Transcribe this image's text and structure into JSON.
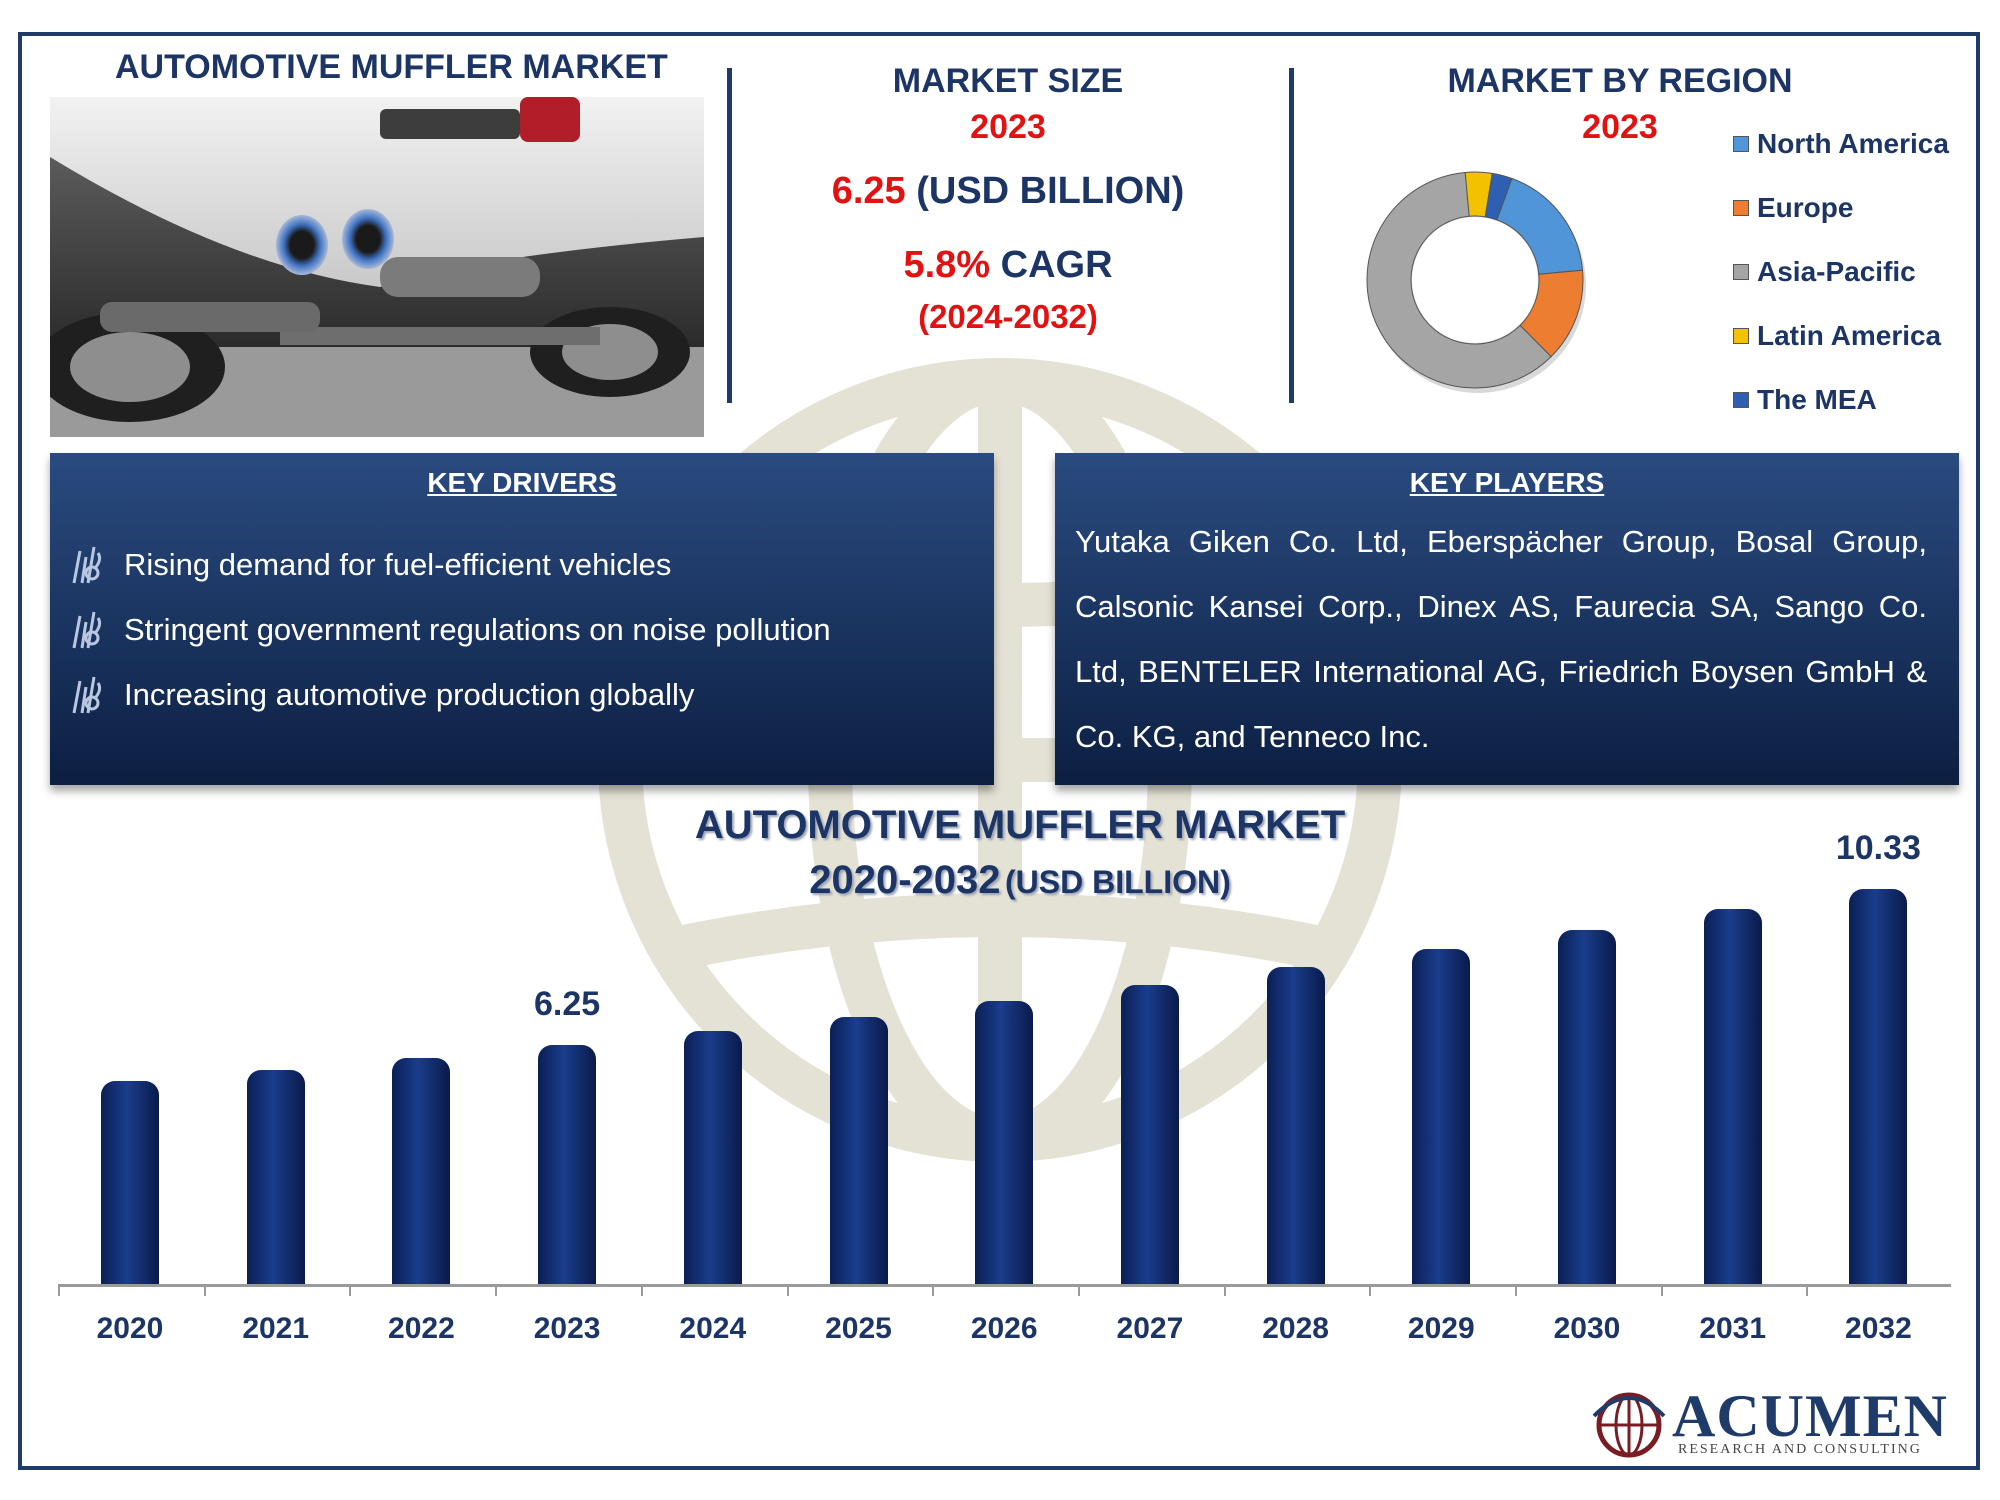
{
  "header": {
    "title": "AUTOMOTIVE MUFFLER MARKET"
  },
  "market_size": {
    "heading": "MARKET SIZE",
    "year": "2023",
    "value": "6.25",
    "unit": "(USD BILLION)",
    "cagr_value": "5.8%",
    "cagr_label": "CAGR",
    "cagr_period": "(2024-2032)"
  },
  "region": {
    "heading": "MARKET BY REGION",
    "year": "2023",
    "legend": [
      {
        "label": "North America",
        "color": "#4f95d8"
      },
      {
        "label": "Europe",
        "color": "#ed7d31"
      },
      {
        "label": "Asia-Pacific",
        "color": "#a5a5a5"
      },
      {
        "label": "Latin America",
        "color": "#f2c200"
      },
      {
        "label": "The MEA",
        "color": "#2e5fb3"
      }
    ]
  },
  "key_drivers": {
    "heading": "KEY DRIVERS",
    "items": [
      "Rising demand for fuel-efficient vehicles",
      "Stringent government regulations on noise pollution",
      "Increasing automotive production globally"
    ]
  },
  "key_players": {
    "heading": "KEY PLAYERS",
    "text": "Yutaka Giken Co. Ltd, Eberspächer Group, Bosal Group, Calsonic Kansei Corp., Dinex AS, Faurecia SA, Sango Co. Ltd, BENTELER International AG, Friedrich Boysen GmbH & Co. KG, and Tenneco Inc."
  },
  "bar_chart_title": {
    "line1": "AUTOMOTIVE MUFFLER MARKET",
    "line2_years": "2020-2032",
    "line2_unit": "(USD BILLION)"
  },
  "logo": {
    "name": "ACUMEN",
    "tagline": "RESEARCH AND CONSULTING"
  },
  "chart_data": [
    {
      "type": "bar",
      "title": "AUTOMOTIVE MUFFLER MARKET 2020-2032 (USD BILLION)",
      "categories": [
        "2020",
        "2021",
        "2022",
        "2023",
        "2024",
        "2025",
        "2026",
        "2027",
        "2028",
        "2029",
        "2030",
        "2031",
        "2032"
      ],
      "values": [
        5.3,
        5.6,
        5.9,
        6.25,
        6.61,
        6.99,
        7.4,
        7.83,
        8.28,
        8.76,
        9.27,
        9.81,
        10.33
      ],
      "data_labels": {
        "2023": "6.25",
        "2032": "10.33"
      },
      "color": "#13296b",
      "ylim": [
        0,
        10.33
      ]
    },
    {
      "type": "pie",
      "title": "MARKET BY REGION 2023",
      "donut": true,
      "labels": [
        "North America",
        "Europe",
        "Asia-Pacific",
        "Latin America",
        "The MEA"
      ],
      "values": [
        18,
        14,
        61,
        4,
        3
      ],
      "colors": [
        "#4f95d8",
        "#ed7d31",
        "#a5a5a5",
        "#f2c200",
        "#2e5fb3"
      ]
    }
  ]
}
